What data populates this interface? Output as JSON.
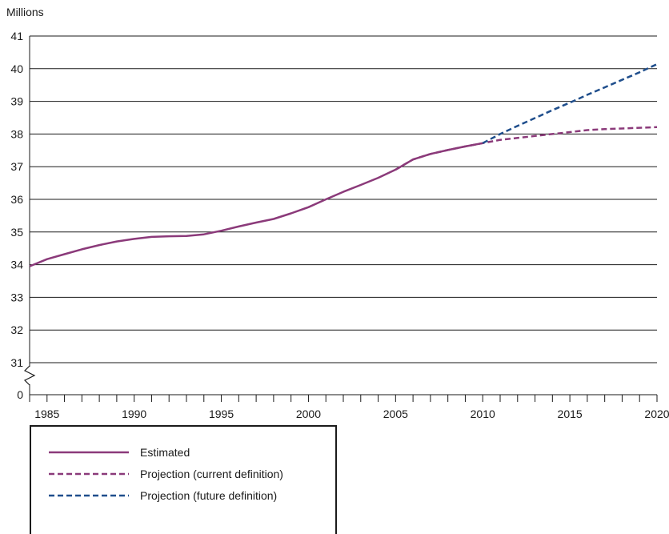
{
  "chart_data": {
    "type": "line",
    "ylabel": "Millions",
    "xlabel": "",
    "title": "",
    "x_ticks": [
      1985,
      1990,
      1995,
      2000,
      2005,
      2010,
      2015,
      2020
    ],
    "y_tick_labels": [
      "0",
      "31",
      "32",
      "33",
      "34",
      "35",
      "36",
      "37",
      "38",
      "39",
      "40",
      "41"
    ],
    "y_axis_break": true,
    "xlim": [
      1984,
      2020
    ],
    "ylim": [
      30,
      41
    ],
    "grid": "horizontal",
    "legend_position": "bottom-left",
    "series": [
      {
        "name": "Estimated",
        "color": "#8b3a7a",
        "style": "solid",
        "points": [
          [
            1984,
            33.95
          ],
          [
            1985,
            34.17
          ],
          [
            1986,
            34.32
          ],
          [
            1987,
            34.47
          ],
          [
            1988,
            34.6
          ],
          [
            1989,
            34.71
          ],
          [
            1990,
            34.79
          ],
          [
            1991,
            34.85
          ],
          [
            1992,
            34.87
          ],
          [
            1993,
            34.88
          ],
          [
            1994,
            34.93
          ],
          [
            1995,
            35.04
          ],
          [
            1996,
            35.17
          ],
          [
            1997,
            35.29
          ],
          [
            1998,
            35.4
          ],
          [
            1999,
            35.57
          ],
          [
            2000,
            35.76
          ],
          [
            2001,
            36.0
          ],
          [
            2002,
            36.23
          ],
          [
            2003,
            36.44
          ],
          [
            2004,
            36.66
          ],
          [
            2005,
            36.91
          ],
          [
            2006,
            37.22
          ],
          [
            2007,
            37.39
          ],
          [
            2008,
            37.51
          ],
          [
            2009,
            37.62
          ],
          [
            2010,
            37.72
          ]
        ]
      },
      {
        "name": "Projection (current definition)",
        "color": "#8b3a7a",
        "style": "dashed",
        "points": [
          [
            2005,
            36.91
          ],
          [
            2006,
            37.22
          ],
          [
            2007,
            37.39
          ],
          [
            2008,
            37.51
          ],
          [
            2009,
            37.62
          ],
          [
            2010,
            37.72
          ],
          [
            2011,
            37.82
          ],
          [
            2012,
            37.88
          ],
          [
            2013,
            37.94
          ],
          [
            2014,
            38.0
          ],
          [
            2015,
            38.06
          ],
          [
            2016,
            38.12
          ],
          [
            2017,
            38.15
          ],
          [
            2018,
            38.17
          ],
          [
            2019,
            38.19
          ],
          [
            2020,
            38.21
          ]
        ]
      },
      {
        "name": "Projection (future definition)",
        "color": "#1f4e8c",
        "style": "dashed",
        "points": [
          [
            2010,
            37.72
          ],
          [
            2011,
            38.0
          ],
          [
            2012,
            38.25
          ],
          [
            2013,
            38.49
          ],
          [
            2014,
            38.73
          ],
          [
            2015,
            38.96
          ],
          [
            2016,
            39.2
          ],
          [
            2017,
            39.43
          ],
          [
            2018,
            39.66
          ],
          [
            2019,
            39.89
          ],
          [
            2020,
            40.14
          ]
        ]
      }
    ]
  }
}
